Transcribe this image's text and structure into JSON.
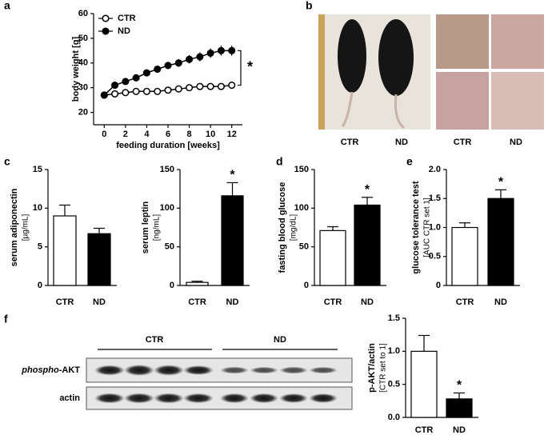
{
  "panel_letters": [
    "a",
    "b",
    "c",
    "d",
    "e",
    "f"
  ],
  "photo_labels": [
    "CTR",
    "ND",
    "CTR",
    "ND"
  ],
  "blot": {
    "groups": [
      "CTR",
      "ND"
    ],
    "row1": {
      "italic": "phospho",
      "plain": "-AKT"
    },
    "row2": "actin"
  },
  "chart_data": [
    {
      "type": "line",
      "ylabel": "body weight [g]",
      "xlabel": "feeding duration [weeks]",
      "annotation": "*",
      "legend": "top-left",
      "x": [
        0,
        1,
        2,
        3,
        4,
        5,
        6,
        7,
        8,
        9,
        10,
        11,
        12
      ],
      "series": [
        {
          "name": "CTR",
          "color": "#000000",
          "marker_fill": "#ffffff",
          "values": [
            27,
            27.5,
            28,
            28.5,
            28.5,
            28.5,
            29,
            29.5,
            30,
            30.5,
            30.5,
            30.5,
            31
          ],
          "errors": [
            0.5,
            0.5,
            0.5,
            0.5,
            0.5,
            0.5,
            0.5,
            0.5,
            0.6,
            0.6,
            0.6,
            0.6,
            0.6
          ]
        },
        {
          "name": "ND",
          "color": "#000000",
          "marker_fill": "#000000",
          "values": [
            27,
            31,
            32.5,
            34,
            36,
            37.5,
            39,
            40,
            41.5,
            42.5,
            44,
            45,
            45
          ],
          "errors": [
            0.8,
            1.2,
            1.2,
            1.3,
            1.4,
            1.5,
            1.5,
            1.6,
            1.7,
            1.8,
            1.9,
            2,
            2
          ]
        }
      ],
      "xlim": [
        -1,
        13
      ],
      "xticks": [
        0,
        2,
        4,
        6,
        8,
        10,
        12
      ],
      "ylim": [
        15,
        60
      ],
      "yticks": [
        20,
        30,
        40,
        50,
        60
      ]
    },
    {
      "type": "bar",
      "ylabel": "serum adiponectin",
      "yunit": "[µg/mL]",
      "categories": [
        "CTR",
        "ND"
      ],
      "values": [
        9,
        6.7
      ],
      "errors": [
        1.4,
        0.7
      ],
      "colors": [
        "#ffffff",
        "#000000"
      ],
      "ylim": [
        0,
        15
      ],
      "yticks": [
        0,
        5,
        10,
        15
      ]
    },
    {
      "type": "bar",
      "ylabel": "serum leptin",
      "yunit": "[ng/mL]",
      "annotation": "*",
      "categories": [
        "CTR",
        "ND"
      ],
      "values": [
        4,
        116
      ],
      "errors": [
        1.5,
        17
      ],
      "colors": [
        "#ffffff",
        "#000000"
      ],
      "ylim": [
        0,
        150
      ],
      "yticks": [
        0,
        50,
        100,
        150
      ]
    },
    {
      "type": "bar",
      "ylabel": "fasting blood glucose",
      "yunit": "[mg/dL]",
      "annotation": "*",
      "categories": [
        "CTR",
        "ND"
      ],
      "values": [
        71,
        104
      ],
      "errors": [
        5,
        10
      ],
      "colors": [
        "#ffffff",
        "#000000"
      ],
      "ylim": [
        0,
        150
      ],
      "yticks": [
        0,
        50,
        100,
        150
      ]
    },
    {
      "type": "bar",
      "ylabel": "glucose tolerance test",
      "yunit": "[AUC CTR set 1]",
      "annotation": "*",
      "categories": [
        "CTR",
        "ND"
      ],
      "values": [
        1.0,
        1.5
      ],
      "errors": [
        0.08,
        0.15
      ],
      "colors": [
        "#ffffff",
        "#000000"
      ],
      "ylim": [
        0,
        2
      ],
      "yticks": [
        0,
        0.5,
        {
          "value": 1,
          "label": "1.0"
        },
        1.5,
        {
          "value": 2,
          "label": "2.0"
        }
      ]
    },
    {
      "type": "bar",
      "ylabel": "p-AKT/actin",
      "yunit": "[CTR set to 1]",
      "annotation": "*",
      "categories": [
        "CTR",
        "ND"
      ],
      "values": [
        1.0,
        0.28
      ],
      "errors": [
        0.24,
        0.09
      ],
      "colors": [
        "#ffffff",
        "#000000"
      ],
      "ylim": [
        0,
        1.5
      ],
      "yticks": [
        {
          "value": 0,
          "label": "0.0"
        },
        0.5,
        {
          "value": 1,
          "label": "1.0"
        },
        1.5
      ]
    }
  ]
}
